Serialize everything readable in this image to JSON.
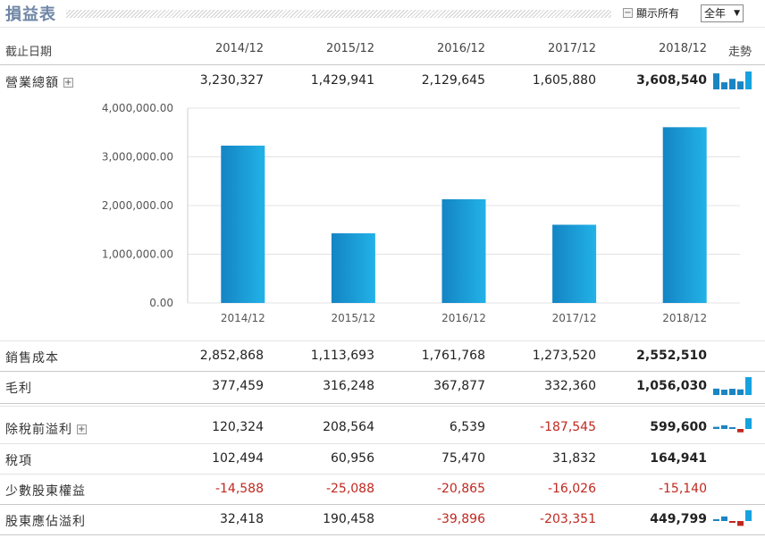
{
  "page": {
    "title": "損益表"
  },
  "controls": {
    "show_all_label": "顯示所有",
    "show_all_toggle": "−",
    "period_selected": "全年",
    "period_arrow": "▼"
  },
  "header": {
    "date_label": "截止日期",
    "periods": [
      "2014/12",
      "2015/12",
      "2016/12",
      "2017/12",
      "2018/12"
    ],
    "trend_label": "走勢"
  },
  "rows": [
    {
      "label": "營業總額",
      "expand": "+",
      "values": [
        "3,230,327",
        "1,429,941",
        "2,129,645",
        "1,605,880",
        "3,608,540"
      ],
      "negative": [
        false,
        false,
        false,
        false,
        false
      ],
      "spark": [
        3230327,
        1429941,
        2129645,
        1605880,
        3608540
      ]
    },
    {
      "label": "銷售成本",
      "values": [
        "2,852,868",
        "1,113,693",
        "1,761,768",
        "1,273,520",
        "2,552,510"
      ],
      "negative": [
        false,
        false,
        false,
        false,
        false
      ]
    },
    {
      "label": "毛利",
      "values": [
        "377,459",
        "316,248",
        "367,877",
        "332,360",
        "1,056,030"
      ],
      "negative": [
        false,
        false,
        false,
        false,
        false
      ],
      "spark": [
        377459,
        316248,
        367877,
        332360,
        1056030
      ]
    },
    {
      "label": "除稅前溢利",
      "expand": "+",
      "values": [
        "120,324",
        "208,564",
        "6,539",
        "-187,545",
        "599,600"
      ],
      "negative": [
        false,
        false,
        false,
        true,
        false
      ],
      "spark": [
        120324,
        208564,
        6539,
        -187545,
        599600
      ]
    },
    {
      "label": "稅項",
      "values": [
        "102,494",
        "60,956",
        "75,470",
        "31,832",
        "164,941"
      ],
      "negative": [
        false,
        false,
        false,
        false,
        false
      ]
    },
    {
      "label": "少數股東權益",
      "values": [
        "-14,588",
        "-25,088",
        "-20,865",
        "-16,026",
        "-15,140"
      ],
      "negative": [
        true,
        true,
        true,
        true,
        true
      ]
    },
    {
      "label": "股東應佔溢利",
      "values": [
        "32,418",
        "190,458",
        "-39,896",
        "-203,351",
        "449,799"
      ],
      "negative": [
        false,
        false,
        true,
        true,
        false
      ],
      "spark": [
        32418,
        190458,
        -39896,
        -203351,
        449799
      ]
    }
  ],
  "colors": {
    "bar": "#1b9ad6",
    "spark_pos": "#1a85c2",
    "spark_neg": "#c0281f",
    "spark_last": "#16a2de"
  },
  "chart_data": {
    "type": "bar",
    "categories": [
      "2014/12",
      "2015/12",
      "2016/12",
      "2017/12",
      "2018/12"
    ],
    "values": [
      3230327,
      1429941,
      2129645,
      1605880,
      3608540
    ],
    "ylim": [
      0,
      4000000
    ],
    "yticks": [
      "0.00",
      "1,000,000.00",
      "2,000,000.00",
      "3,000,000.00",
      "4,000,000.00"
    ],
    "grid": true
  }
}
